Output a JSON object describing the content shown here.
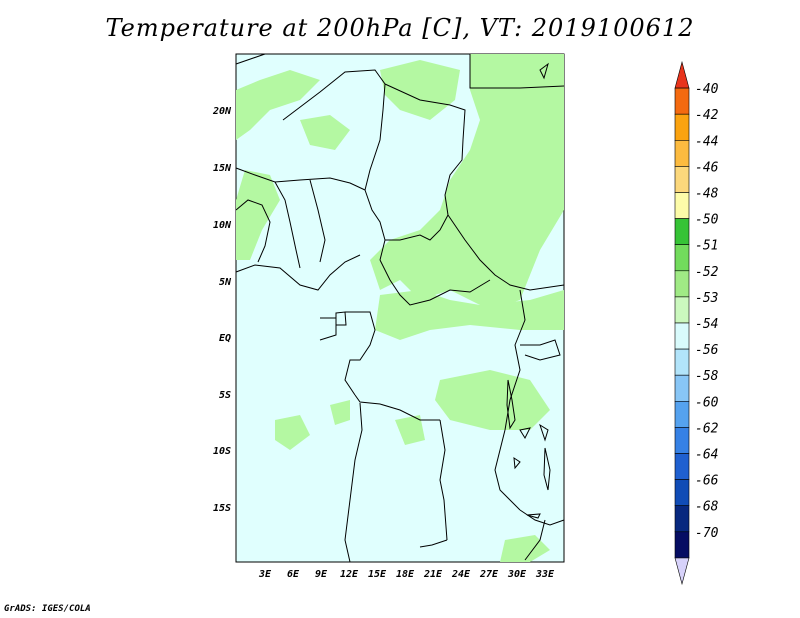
{
  "map": {
    "title": "Temperature at 200hPa [C], VT: 2019100612",
    "credit": "GrADS: IGES/COLA",
    "lon_labels": [
      "3E",
      "6E",
      "9E",
      "12E",
      "15E",
      "18E",
      "21E",
      "24E",
      "27E",
      "30E",
      "33E"
    ],
    "lat_labels": [
      "20N",
      "15N",
      "10N",
      "5N",
      "EQ",
      "5S",
      "10S",
      "15S"
    ],
    "background_color": "#e0fffe",
    "secondary_color": "#b4f8a2",
    "border_color": "#000000"
  },
  "colorbar": {
    "levels": [
      "-40",
      "-42",
      "-44",
      "-46",
      "-48",
      "-50",
      "-51",
      "-52",
      "-53",
      "-54",
      "-56",
      "-58",
      "-60",
      "-62",
      "-64",
      "-66",
      "-68",
      "-70"
    ],
    "colors": [
      "#e8341c",
      "#f46a10",
      "#fba310",
      "#fcbb40",
      "#fcd87c",
      "#fdfca9",
      "#36c336",
      "#72db5c",
      "#a0ea85",
      "#cbf8be",
      "#d9fbfc",
      "#b2e4fa",
      "#88c6f6",
      "#55a2ef",
      "#3681e5",
      "#1f60d0",
      "#104cb6",
      "#08287f",
      "#060d63",
      "#d7d2fa"
    ]
  }
}
